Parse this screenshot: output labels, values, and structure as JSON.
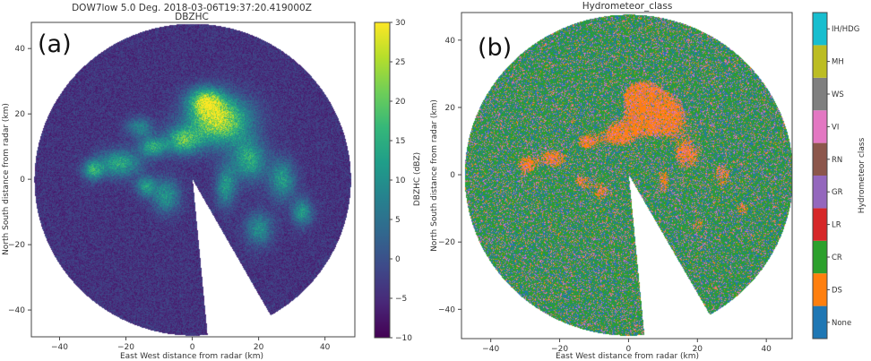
{
  "chart_data": [
    {
      "type": "heatmap",
      "panel_label": "(a)",
      "title": "DOW7low 5.0 Deg. 2018-03-06T19:37:20.419000Z",
      "subtitle": "DBZHC",
      "xlabel": "East West distance from radar (km)",
      "ylabel": "North South distance from radar (km)",
      "xlim": [
        -48.5,
        49
      ],
      "ylim": [
        -48.2,
        48
      ],
      "xticks": [
        -40,
        -20,
        0,
        20,
        40
      ],
      "yticks": [
        -40,
        -20,
        0,
        20,
        40
      ],
      "grid": false,
      "colorbar": {
        "label": "DBZHC (dBZ)",
        "range": [
          -10,
          30
        ],
        "ticks": [
          -10,
          -5,
          0,
          5,
          10,
          15,
          20,
          25,
          30
        ],
        "colormap": [
          "#440154",
          "#482878",
          "#3e4989",
          "#31688e",
          "#26828e",
          "#1f9e89",
          "#35b779",
          "#6ece58",
          "#b5de2b",
          "#fde725"
        ]
      },
      "scan_radius_km": 47.7,
      "blocked_sector_azimuth_deg": [
        150.5,
        174.6
      ]
    },
    {
      "type": "heatmap",
      "panel_label": "(b)",
      "title": "Hydrometeor_class",
      "xlabel": "East West distance from radar (km)",
      "ylabel": "North South distance from radar (km)",
      "xlim": [
        -48.5,
        47.5
      ],
      "ylim": [
        -48.7,
        48.2
      ],
      "xticks": [
        -40,
        -20,
        0,
        20,
        40
      ],
      "yticks": [
        -40,
        -20,
        0,
        20,
        40
      ],
      "grid": false,
      "colorbar": {
        "label": "Hydrometeor class",
        "classes": [
          {
            "name": "None",
            "color": "#1f77b4"
          },
          {
            "name": "DS",
            "color": "#ff7f0e"
          },
          {
            "name": "CR",
            "color": "#2ca02c"
          },
          {
            "name": "LR",
            "color": "#d62728"
          },
          {
            "name": "GR",
            "color": "#9467bd"
          },
          {
            "name": "RN",
            "color": "#8c564b"
          },
          {
            "name": "VI",
            "color": "#e377c2"
          },
          {
            "name": "WS",
            "color": "#7f7f7f"
          },
          {
            "name": "MH",
            "color": "#bcbd22"
          },
          {
            "name": "IH/HDG",
            "color": "#17becf"
          }
        ]
      },
      "scan_radius_km": 47.7,
      "blocked_sector_azimuth_deg": [
        150.5,
        174.6
      ]
    }
  ]
}
